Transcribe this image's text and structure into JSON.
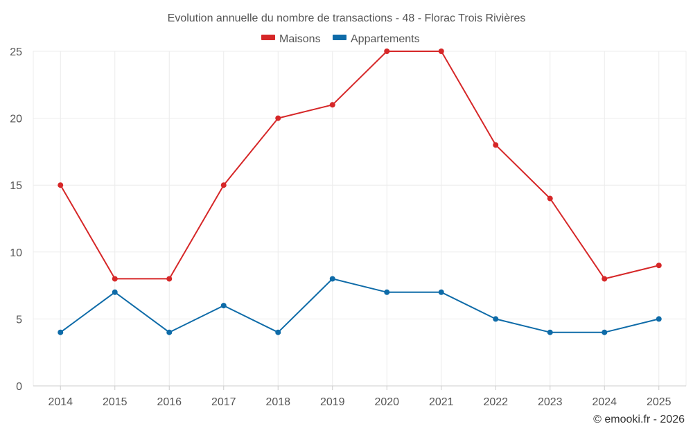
{
  "chart_data": {
    "type": "line",
    "title": "Evolution annuelle du nombre de transactions - 48 - Florac Trois Rivières",
    "categories": [
      "2014",
      "2015",
      "2016",
      "2017",
      "2018",
      "2019",
      "2020",
      "2021",
      "2022",
      "2023",
      "2024",
      "2025"
    ],
    "series": [
      {
        "name": "Maisons",
        "color": "#d62728",
        "values": [
          15,
          8,
          8,
          15,
          20,
          21,
          25,
          25,
          18,
          14,
          8,
          9
        ]
      },
      {
        "name": "Appartements",
        "color": "#0e6ba8",
        "values": [
          4,
          7,
          4,
          6,
          4,
          8,
          7,
          7,
          5,
          4,
          4,
          5
        ]
      }
    ],
    "ylim": [
      0,
      25
    ],
    "yticks": [
      0,
      5,
      10,
      15,
      20,
      25
    ],
    "grid": true,
    "legend": "top-center",
    "xlabel": "",
    "ylabel": ""
  },
  "credit": "© emooki.fr - 2026"
}
